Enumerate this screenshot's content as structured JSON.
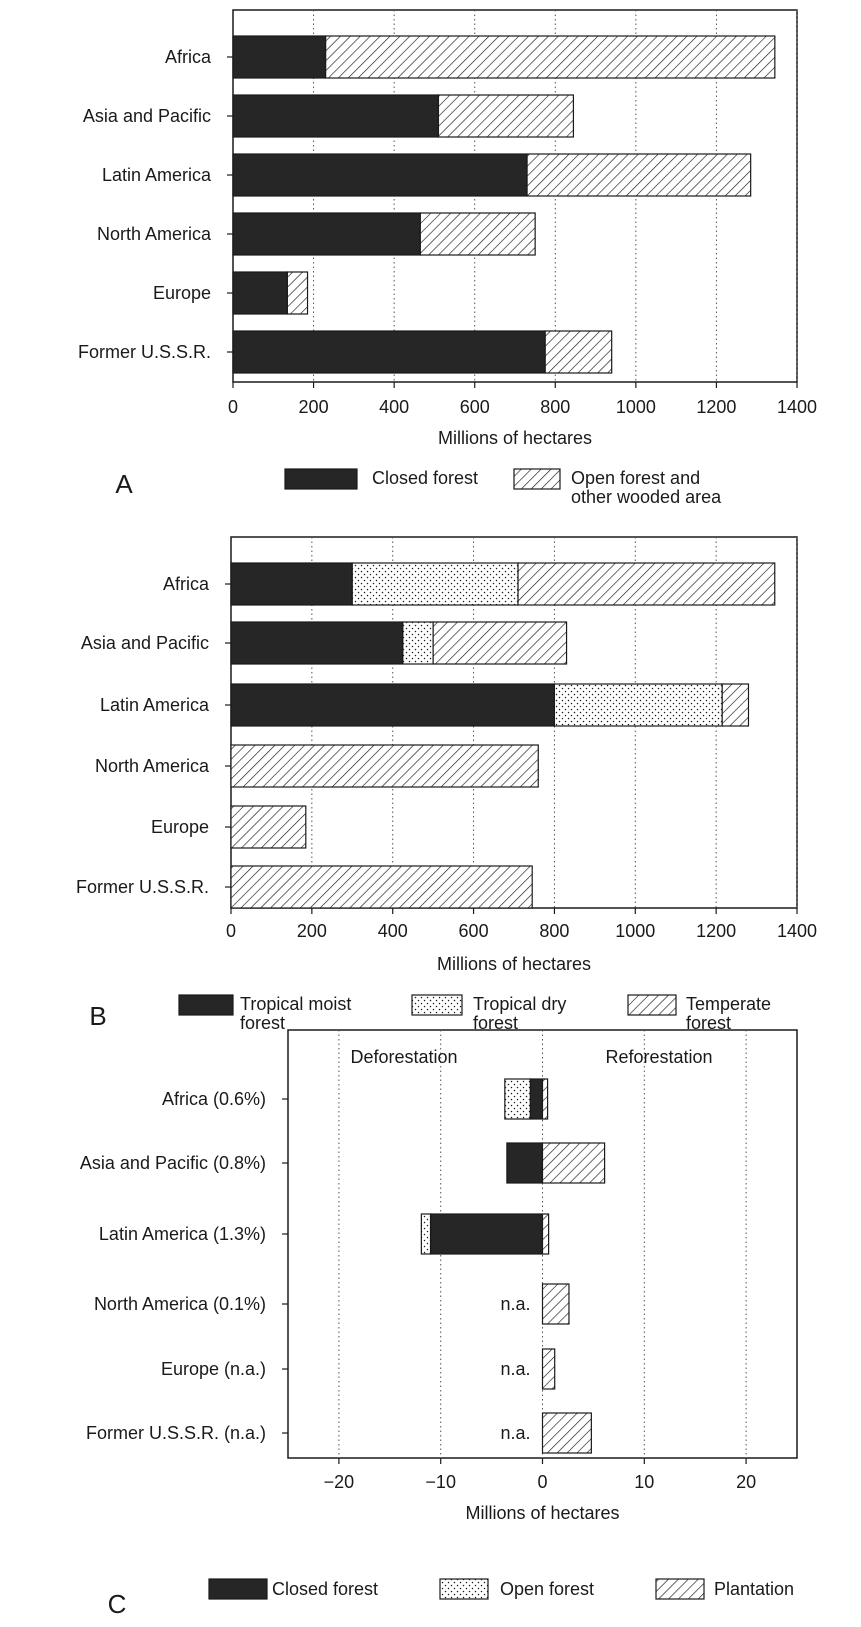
{
  "colors": {
    "ink": "#1a1a1a",
    "closed": "#262626",
    "grid": "#555555"
  },
  "chart_data": [
    {
      "panel_label": "A",
      "type": "bar",
      "orientation": "horizontal",
      "stacked": true,
      "categories": [
        "Africa",
        "Asia and Pacific",
        "Latin America",
        "North America",
        "Europe",
        "Former U.S.S.R."
      ],
      "series": [
        {
          "name": "Closed forest",
          "pattern": "solid",
          "values": [
            230,
            510,
            730,
            465,
            135,
            775
          ]
        },
        {
          "name": "Open forest and other wooded area",
          "pattern": "hatch",
          "values": [
            1115,
            335,
            555,
            285,
            50,
            165
          ]
        }
      ],
      "legend_lines": [
        [
          "Closed forest"
        ],
        [
          "Open forest and",
          "other wooded area"
        ]
      ],
      "xlabel": "Millions of hectares",
      "xlim": [
        0,
        1400
      ],
      "xticks": [
        0,
        200,
        400,
        600,
        800,
        1000,
        1200,
        1400
      ],
      "grid": "vertical dotted",
      "legend_position": "bottom"
    },
    {
      "panel_label": "B",
      "type": "bar",
      "orientation": "horizontal",
      "stacked": true,
      "categories": [
        "Africa",
        "Asia and Pacific",
        "Latin America",
        "North America",
        "Europe",
        "Former U.S.S.R."
      ],
      "series": [
        {
          "name": "Tropical moist forest",
          "pattern": "solid",
          "values": [
            300,
            425,
            800,
            0,
            0,
            0
          ]
        },
        {
          "name": "Tropical dry forest",
          "pattern": "dots",
          "values": [
            410,
            75,
            415,
            0,
            0,
            0
          ]
        },
        {
          "name": "Temperate forest",
          "pattern": "hatch",
          "values": [
            635,
            330,
            65,
            760,
            185,
            745
          ]
        }
      ],
      "legend_lines": [
        [
          "Tropical moist",
          "forest"
        ],
        [
          "Tropical dry",
          "forest"
        ],
        [
          "Temperate",
          "forest"
        ]
      ],
      "xlabel": "Millions of hectares",
      "xlim": [
        0,
        1400
      ],
      "xticks": [
        0,
        200,
        400,
        600,
        800,
        1000,
        1200,
        1400
      ],
      "grid": "vertical dotted",
      "legend_position": "bottom"
    },
    {
      "panel_label": "C",
      "type": "bar",
      "orientation": "horizontal",
      "diverging": true,
      "categories": [
        "Africa (0.6%)",
        "Asia and Pacific (0.8%)",
        "Latin America (1.3%)",
        "North America (0.1%)",
        "Europe (n.a.)",
        "Former U.S.S.R. (n.a.)"
      ],
      "deforestation": [
        {
          "closed": -1.2,
          "open": -2.5
        },
        {
          "closed": -3.5,
          "open": 0
        },
        {
          "closed": -11.0,
          "open": -0.9
        },
        null,
        null,
        null
      ],
      "reforestation": [
        0.5,
        6.1,
        0.6,
        2.6,
        1.2,
        4.8
      ],
      "na_label": "n.a.",
      "region_labels": {
        "left": "Deforestation",
        "right": "Reforestation"
      },
      "legend": [
        "Closed forest",
        "Open forest",
        "Plantation"
      ],
      "xlabel": "Millions of hectares",
      "xlim": [
        -25,
        25
      ],
      "xticks": [
        -20,
        -10,
        0,
        10,
        20
      ],
      "grid": "vertical dotted",
      "legend_position": "bottom"
    }
  ]
}
